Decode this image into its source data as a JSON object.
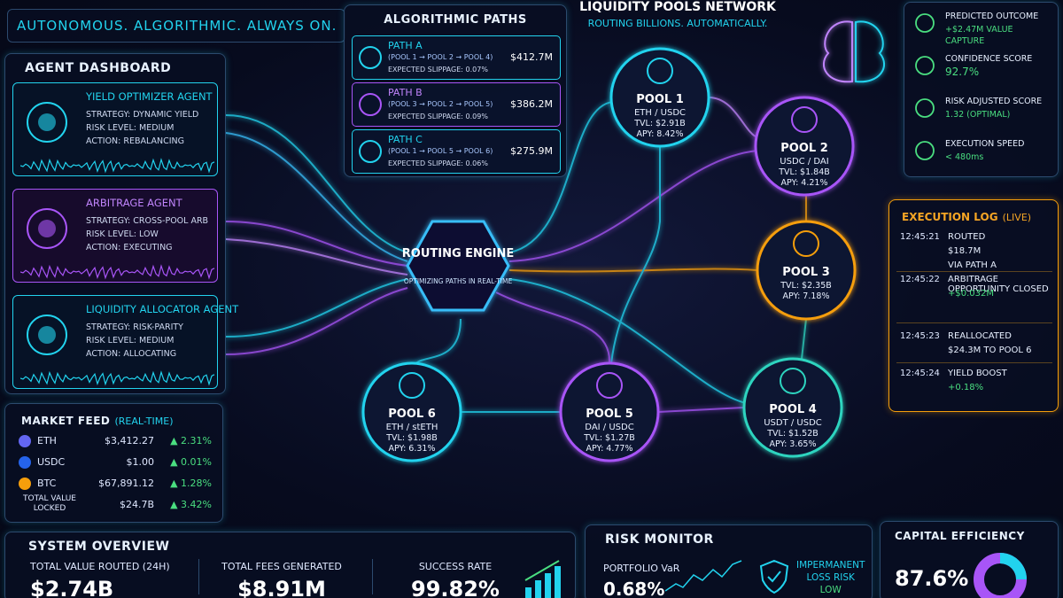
{
  "header": {
    "subtitle": "AUTONOMOUS. ALGORITHMIC. ALWAYS ON."
  },
  "agent_dashboard": {
    "title": "AGENT DASHBOARD",
    "agents": [
      {
        "name": "YIELD OPTIMIZER AGENT",
        "lines": [
          "STRATEGY: DYNAMIC YIELD",
          "RISK LEVEL: MEDIUM",
          "ACTION: REBALANCING"
        ]
      },
      {
        "name": "ARBITRAGE AGENT",
        "lines": [
          "STRATEGY: CROSS-POOL ARB",
          "RISK LEVEL: LOW",
          "ACTION: EXECUTING"
        ]
      },
      {
        "name": "LIQUIDITY ALLOCATOR AGENT",
        "lines": [
          "STRATEGY: RISK-PARITY",
          "RISK LEVEL: MEDIUM",
          "ACTION: ALLOCATING"
        ]
      }
    ]
  },
  "market_feed": {
    "title": "MARKET FEED",
    "subtitle": "(REAL-TIME)",
    "rows": [
      [
        "ETH",
        "$3,412.27",
        "▲ 2.31%"
      ],
      [
        "USDC",
        "$1.00",
        "▲ 0.01%"
      ],
      [
        "BTC",
        "$67,891.12",
        "▲ 1.28%"
      ],
      [
        "TOTAL VALUE LOCKED",
        "$24.7B",
        "▲ 3.42%"
      ]
    ]
  },
  "algorithmic_paths": {
    "title": "ALGORITHMIC PATHS",
    "paths": [
      {
        "name": "PATH A",
        "route": "(POOL 1 → POOL 2 → POOL 4)",
        "value": "$412.7M",
        "slippage": "EXPECTED SLIPPAGE: 0.07%"
      },
      {
        "name": "PATH B",
        "route": "(POOL 3 → POOL 2 → POOL 5)",
        "value": "$386.2M",
        "slippage": "EXPECTED SLIPPAGE: 0.09%"
      },
      {
        "name": "PATH C",
        "route": "(POOL 1 → POOL 5 → POOL 6)",
        "value": "$275.9M",
        "slippage": "EXPECTED SLIPPAGE: 0.06%"
      }
    ]
  },
  "network": {
    "title": "LIQUIDITY POOLS NETWORK",
    "subtitle": "ROUTING BILLIONS. AUTOMATICALLY.",
    "engine": {
      "title": "ROUTING ENGINE",
      "subtitle": "OPTIMIZING PATHS IN REAL-TIME"
    },
    "pools": [
      {
        "name": "POOL 1",
        "pair": "ETH / USDC",
        "tvl": "TVL: $2.91B",
        "apy": "APY: 8.42%"
      },
      {
        "name": "POOL 2",
        "pair": "USDC / DAI",
        "tvl": "TVL: $1.84B",
        "apy": "APY: 4.21%"
      },
      {
        "name": "POOL 3",
        "tvl": "TVL: $2.35B",
        "apy": "APY: 7.18%"
      },
      {
        "name": "POOL 4",
        "pair": "USDT / USDC",
        "tvl": "TVL: $1.52B",
        "apy": "APY: 3.65%"
      },
      {
        "name": "POOL 5",
        "pair": "DAI / USDC",
        "tvl": "TVL: $1.27B",
        "apy": "APY: 4.77%"
      },
      {
        "name": "POOL 6",
        "pair": "ETH / stETH",
        "tvl": "TVL: $1.98B",
        "apy": "APY: 6.31%"
      }
    ]
  },
  "metrics": [
    {
      "label": "PREDICTED OUTCOME",
      "value": "+$2.47M VALUE CAPTURE"
    },
    {
      "label": "CONFIDENCE SCORE",
      "value": "92.7%"
    },
    {
      "label": "RISK ADJUSTED SCORE",
      "value": "1.32 (OPTIMAL)"
    },
    {
      "label": "EXECUTION SPEED",
      "value": "< 480ms"
    }
  ],
  "execution_log": {
    "title": "EXECUTION LOG",
    "subtitle": "(LIVE)",
    "entries": [
      {
        "time": "12:45:21",
        "lines": [
          "ROUTED",
          "$18.7M",
          "VIA PATH A"
        ]
      },
      {
        "time": "12:45:22",
        "lines": [
          "ARBITRAGE OPPORTUNITY CLOSED",
          "+$0.032M"
        ]
      },
      {
        "time": "12:45:23",
        "lines": [
          "REALLOCATED",
          "$24.3M TO POOL 6"
        ]
      },
      {
        "time": "12:45:24",
        "lines": [
          "YIELD BOOST",
          "+0.18%"
        ]
      }
    ]
  },
  "system_overview": {
    "title": "SYSTEM OVERVIEW",
    "stats": [
      {
        "label": "TOTAL VALUE ROUTED (24H)",
        "value": "$2.74B"
      },
      {
        "label": "TOTAL FEES GENERATED",
        "value": "$8.91M"
      },
      {
        "label": "SUCCESS RATE",
        "value": "99.82%"
      }
    ]
  },
  "risk_monitor": {
    "title": "RISK MONITOR",
    "var_label": "PORTFOLIO VaR",
    "var_value": "0.68%",
    "il_lines": [
      "IMPERMANENT",
      "LOSS RISK",
      "LOW"
    ]
  },
  "capital_efficiency": {
    "title": "CAPITAL EFFICIENCY",
    "value": "87.6%"
  }
}
